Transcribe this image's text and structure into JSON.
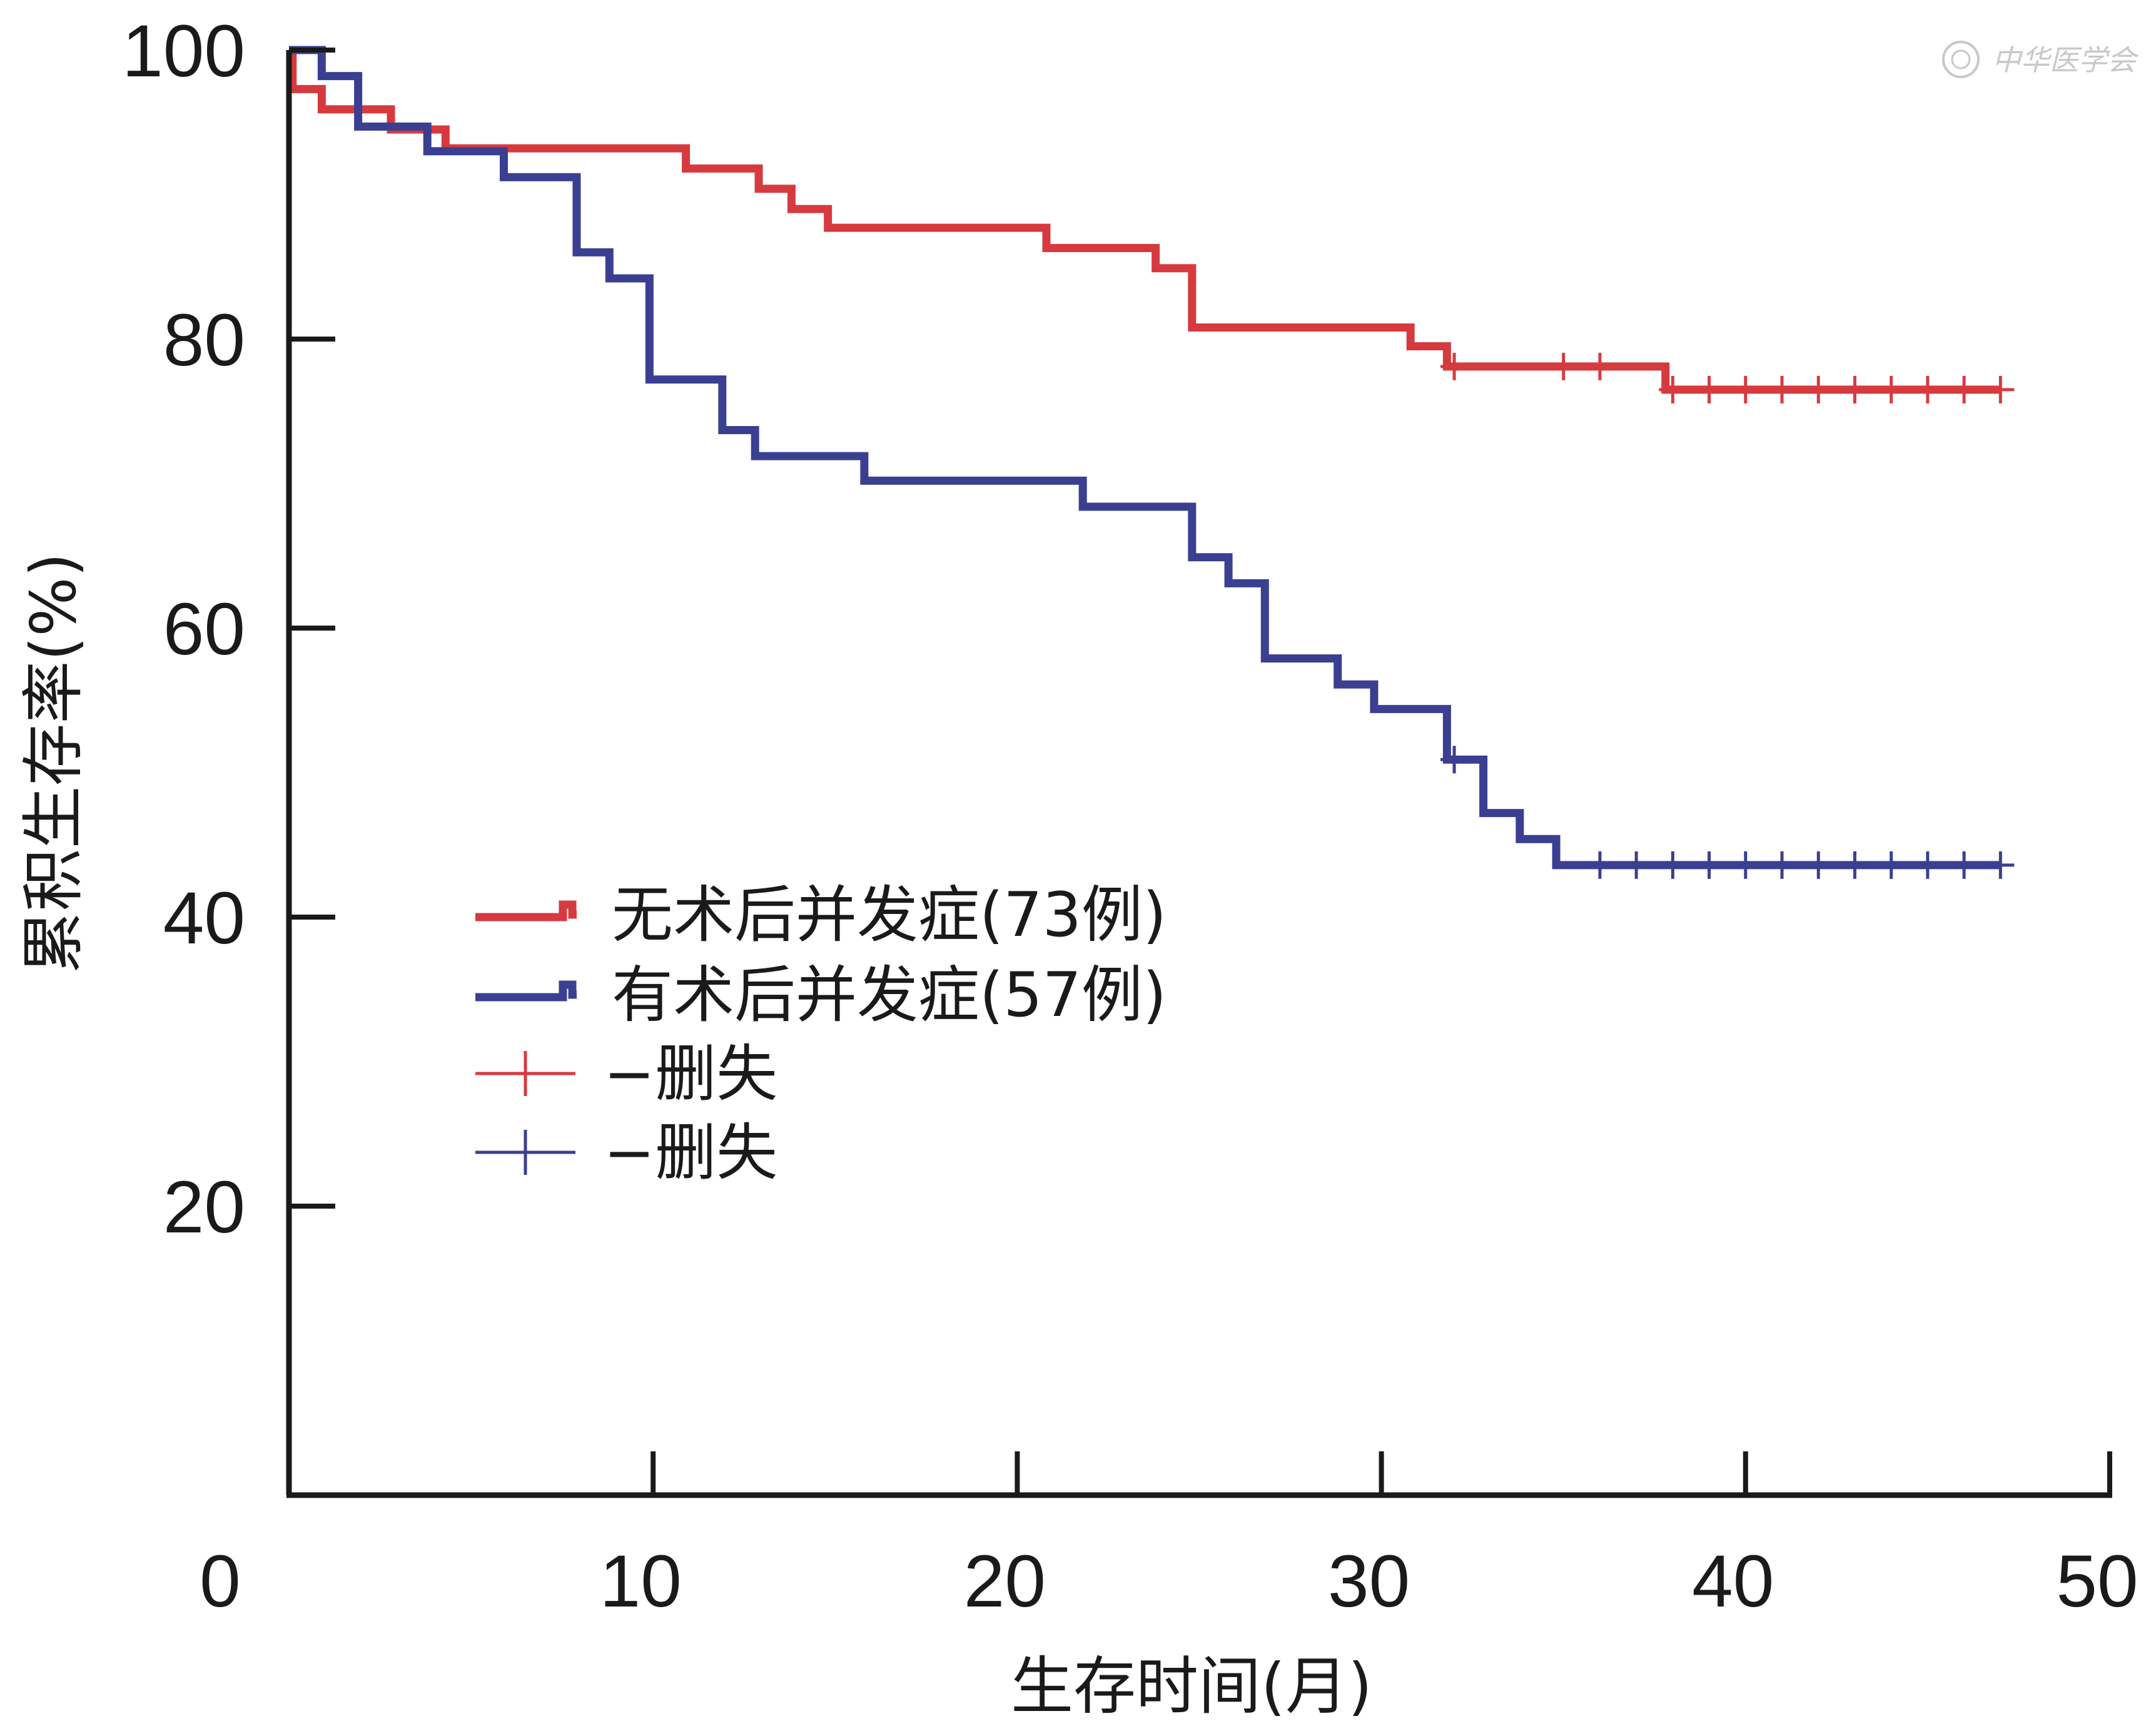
{
  "watermark": "中华医学会",
  "chart_data": {
    "type": "line",
    "subtype": "kaplan-meier",
    "title": "",
    "xlabel": "生存时间(月)",
    "ylabel": "累积生存率(%)",
    "xlim": [
      0,
      50
    ],
    "ylim": [
      0,
      100
    ],
    "xticks": [
      0,
      10,
      20,
      30,
      40,
      50
    ],
    "yticks": [
      20,
      40,
      60,
      80,
      100
    ],
    "grid": false,
    "legend_position": "center-left",
    "series": [
      {
        "name": "无术后并发症(73例)",
        "color": "#d63a3f",
        "steps": [
          [
            0,
            100
          ],
          [
            0.1,
            97.3
          ],
          [
            0.9,
            95.9
          ],
          [
            2.8,
            94.5
          ],
          [
            4.3,
            93.2
          ],
          [
            10.9,
            91.8
          ],
          [
            12.9,
            90.4
          ],
          [
            13.8,
            89.0
          ],
          [
            14.8,
            87.7
          ],
          [
            20.8,
            86.3
          ],
          [
            23.8,
            84.9
          ],
          [
            24.8,
            80.8
          ],
          [
            30.8,
            79.5
          ],
          [
            31.8,
            78.1
          ],
          [
            37.8,
            76.5
          ],
          [
            47,
            76.5
          ]
        ],
        "censored": [
          32,
          35,
          36,
          38,
          39,
          40,
          41,
          42,
          43,
          44,
          45,
          46,
          47
        ]
      },
      {
        "name": "有术后并发症(57例)",
        "color": "#3b3f91",
        "steps": [
          [
            0,
            100
          ],
          [
            0.9,
            98.2
          ],
          [
            1.9,
            94.7
          ],
          [
            3.8,
            93.0
          ],
          [
            5.9,
            91.2
          ],
          [
            7.9,
            86.0
          ],
          [
            8.8,
            84.2
          ],
          [
            9.9,
            77.2
          ],
          [
            11.9,
            73.7
          ],
          [
            12.8,
            71.9
          ],
          [
            15.8,
            70.2
          ],
          [
            21.8,
            68.4
          ],
          [
            24.8,
            64.9
          ],
          [
            25.8,
            63.1
          ],
          [
            26.8,
            57.9
          ],
          [
            28.8,
            56.1
          ],
          [
            29.8,
            54.4
          ],
          [
            31.8,
            50.9
          ],
          [
            32.8,
            47.2
          ],
          [
            33.8,
            45.4
          ],
          [
            34.8,
            43.6
          ],
          [
            47,
            43.6
          ]
        ],
        "censored": [
          32,
          36,
          37,
          38,
          39,
          40,
          41,
          42,
          43,
          44,
          45,
          46,
          47
        ]
      }
    ],
    "censor_legend": [
      {
        "label": "−删失",
        "color": "#d63a3f"
      },
      {
        "label": "−删失",
        "color": "#3b3f91"
      }
    ]
  }
}
